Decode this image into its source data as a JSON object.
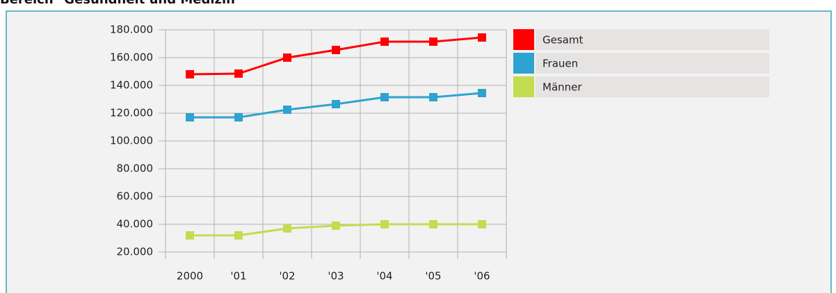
{
  "chart_data": {
    "type": "line",
    "title": "Bereich \"Gesundheit und Medizin\"",
    "categories": [
      "2000",
      "'01",
      "'02",
      "'03",
      "'04",
      "'05",
      "'06"
    ],
    "series": [
      {
        "name": "Gesamt",
        "color": "#ff0000",
        "values": [
          148000,
          148500,
          160000,
          165500,
          171500,
          171500,
          174500
        ]
      },
      {
        "name": "Frauen",
        "color": "#2ea3cf",
        "values": [
          117000,
          117000,
          122500,
          126500,
          131500,
          131500,
          134500
        ]
      },
      {
        "name": "Männer",
        "color": "#c3dc50",
        "values": [
          32000,
          32000,
          37000,
          39000,
          40000,
          40000,
          40000
        ]
      }
    ],
    "ylim": [
      15000,
      180000
    ],
    "yticks": [
      {
        "value": 20000,
        "label": "20.000"
      },
      {
        "value": 40000,
        "label": "40.000"
      },
      {
        "value": 60000,
        "label": "60.000"
      },
      {
        "value": 80000,
        "label": "80.000"
      },
      {
        "value": 100000,
        "label": "100.000"
      },
      {
        "value": 120000,
        "label": "120.000"
      },
      {
        "value": 140000,
        "label": "140.000"
      },
      {
        "value": 160000,
        "label": "160.000"
      },
      {
        "value": 180000,
        "label": "180.000"
      }
    ],
    "grid": true,
    "legend": "right"
  }
}
